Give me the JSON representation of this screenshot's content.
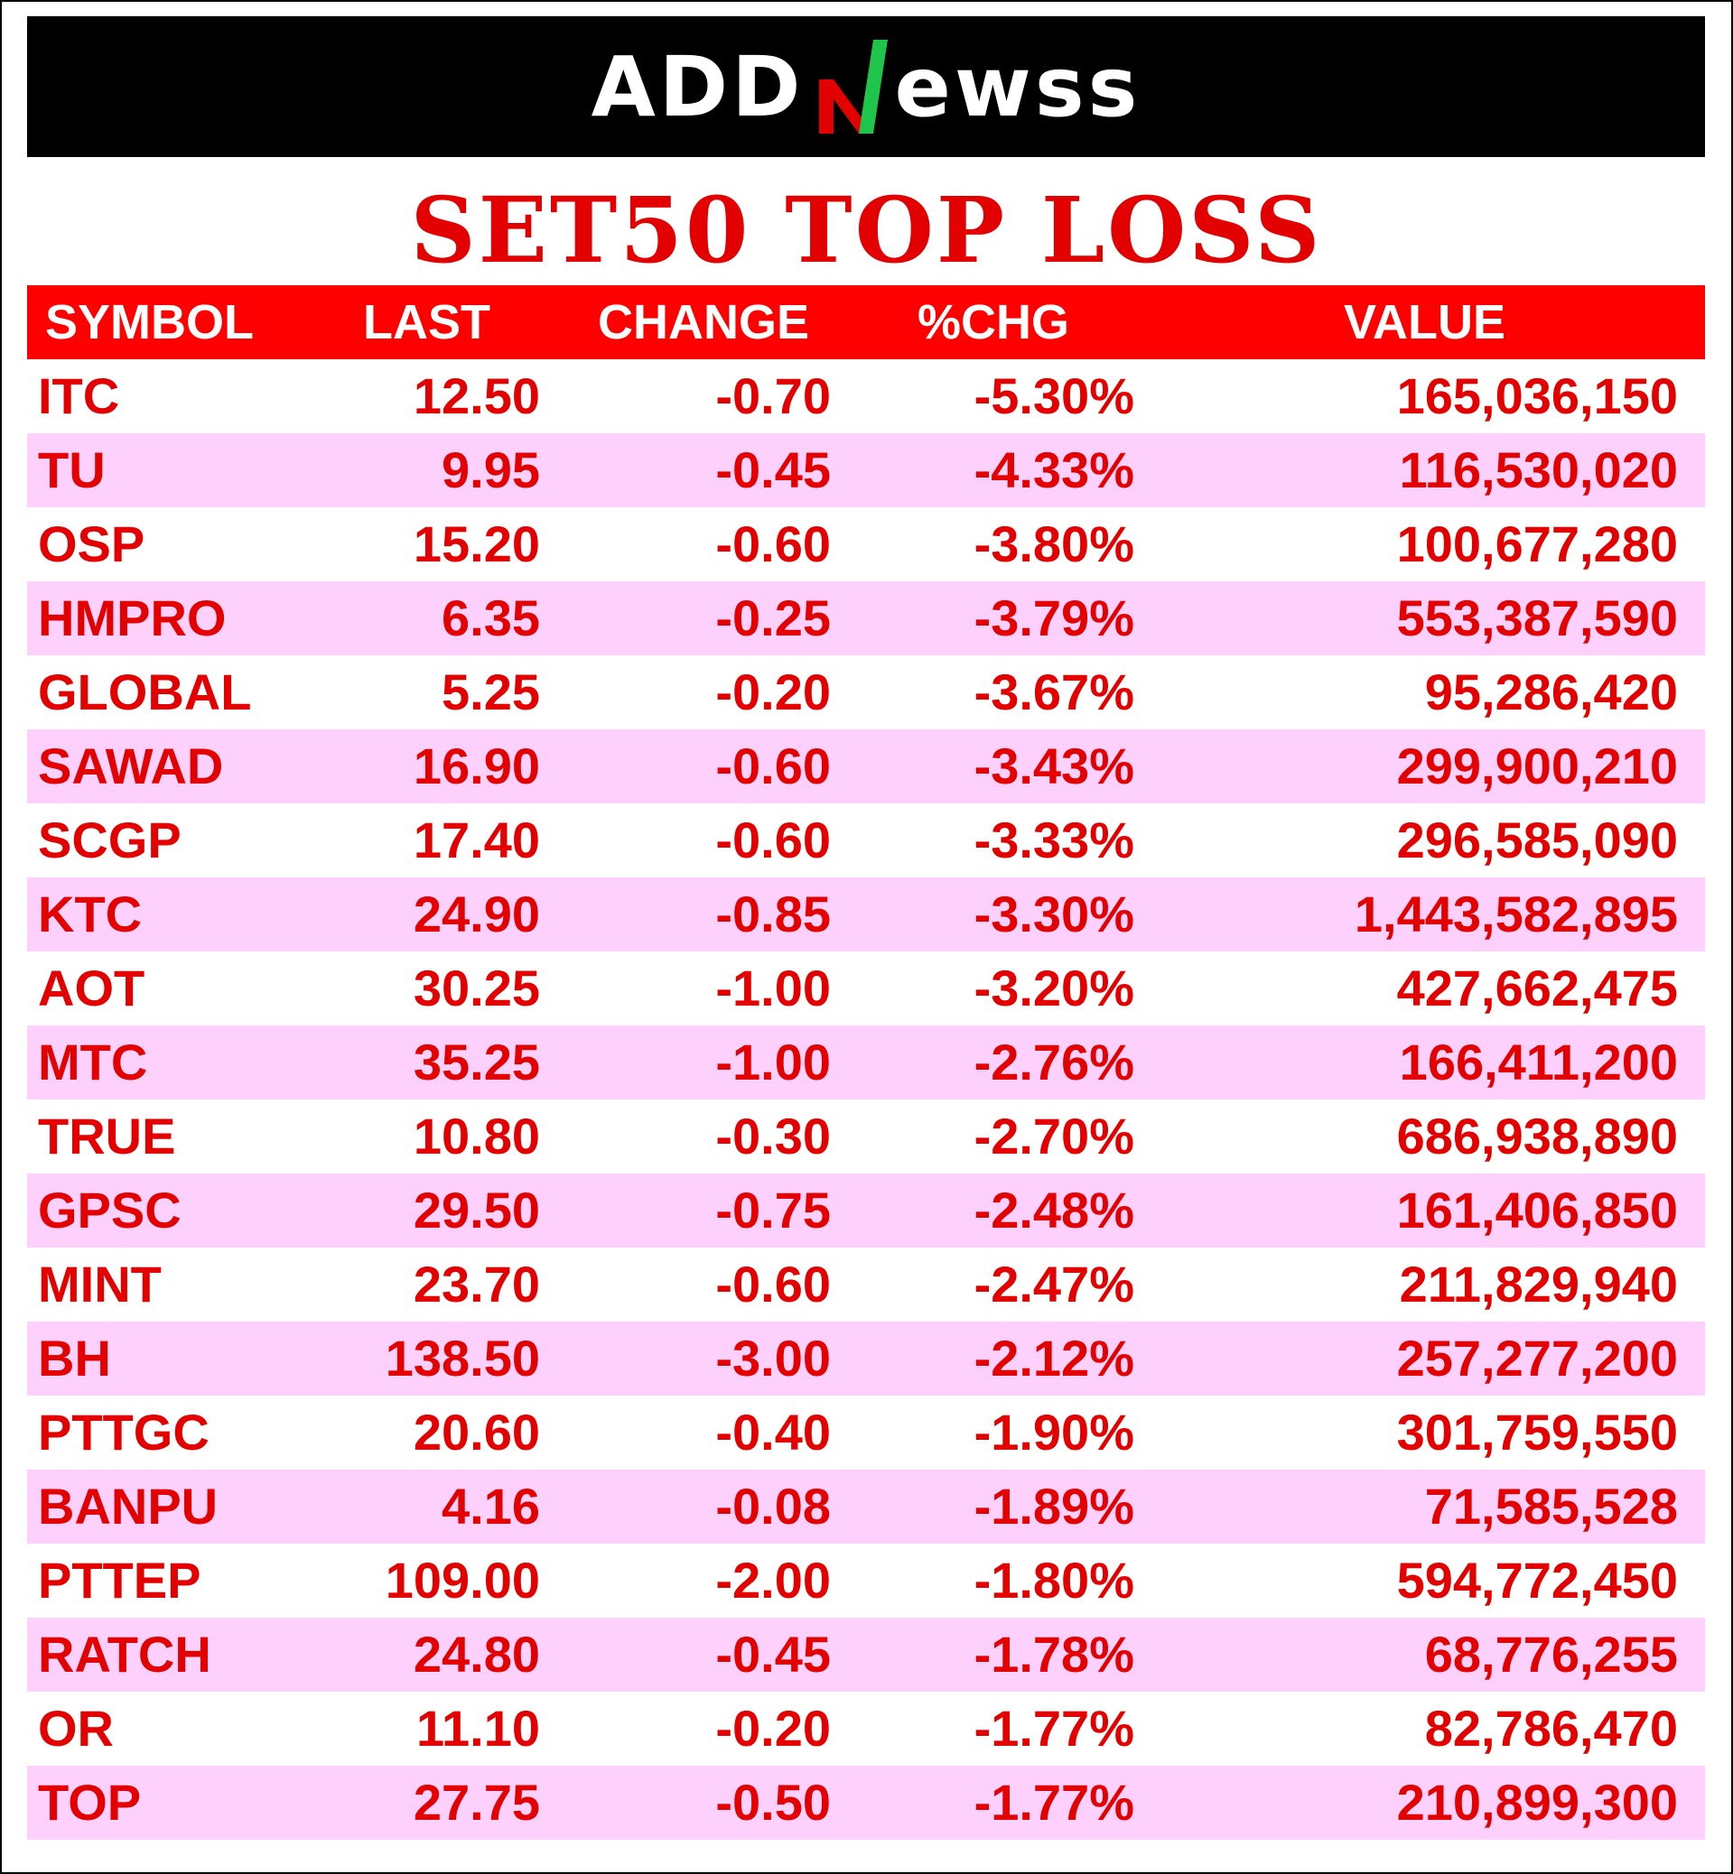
{
  "brand": {
    "logo_text_left": "ADD",
    "logo_text_right": "ewss",
    "green": "#1fc44a",
    "red": "#e30000"
  },
  "title": "SET50 TOP LOSS",
  "table": {
    "headers": [
      "SYMBOL",
      "LAST",
      "CHANGE",
      "%CHG",
      "VALUE"
    ],
    "rows": [
      {
        "symbol": "ITC",
        "last": "12.50",
        "change": "-0.70",
        "pct": "-5.30%",
        "value": "165,036,150"
      },
      {
        "symbol": "TU",
        "last": "9.95",
        "change": "-0.45",
        "pct": "-4.33%",
        "value": "116,530,020"
      },
      {
        "symbol": "OSP",
        "last": "15.20",
        "change": "-0.60",
        "pct": "-3.80%",
        "value": "100,677,280"
      },
      {
        "symbol": "HMPRO",
        "last": "6.35",
        "change": "-0.25",
        "pct": "-3.79%",
        "value": "553,387,590"
      },
      {
        "symbol": "GLOBAL",
        "last": "5.25",
        "change": "-0.20",
        "pct": "-3.67%",
        "value": "95,286,420"
      },
      {
        "symbol": "SAWAD",
        "last": "16.90",
        "change": "-0.60",
        "pct": "-3.43%",
        "value": "299,900,210"
      },
      {
        "symbol": "SCGP",
        "last": "17.40",
        "change": "-0.60",
        "pct": "-3.33%",
        "value": "296,585,090"
      },
      {
        "symbol": "KTC",
        "last": "24.90",
        "change": "-0.85",
        "pct": "-3.30%",
        "value": "1,443,582,895"
      },
      {
        "symbol": "AOT",
        "last": "30.25",
        "change": "-1.00",
        "pct": "-3.20%",
        "value": "427,662,475"
      },
      {
        "symbol": "MTC",
        "last": "35.25",
        "change": "-1.00",
        "pct": "-2.76%",
        "value": "166,411,200"
      },
      {
        "symbol": "TRUE",
        "last": "10.80",
        "change": "-0.30",
        "pct": "-2.70%",
        "value": "686,938,890"
      },
      {
        "symbol": "GPSC",
        "last": "29.50",
        "change": "-0.75",
        "pct": "-2.48%",
        "value": "161,406,850"
      },
      {
        "symbol": "MINT",
        "last": "23.70",
        "change": "-0.60",
        "pct": "-2.47%",
        "value": "211,829,940"
      },
      {
        "symbol": "BH",
        "last": "138.50",
        "change": "-3.00",
        "pct": "-2.12%",
        "value": "257,277,200"
      },
      {
        "symbol": "PTTGC",
        "last": "20.60",
        "change": "-0.40",
        "pct": "-1.90%",
        "value": "301,759,550"
      },
      {
        "symbol": "BANPU",
        "last": "4.16",
        "change": "-0.08",
        "pct": "-1.89%",
        "value": "71,585,528"
      },
      {
        "symbol": "PTTEP",
        "last": "109.00",
        "change": "-2.00",
        "pct": "-1.80%",
        "value": "594,772,450"
      },
      {
        "symbol": "RATCH",
        "last": "24.80",
        "change": "-0.45",
        "pct": "-1.78%",
        "value": "68,776,255"
      },
      {
        "symbol": "OR",
        "last": "11.10",
        "change": "-0.20",
        "pct": "-1.77%",
        "value": "82,786,470"
      },
      {
        "symbol": "TOP",
        "last": "27.75",
        "change": "-0.50",
        "pct": "-1.77%",
        "value": "210,899,300"
      }
    ]
  }
}
